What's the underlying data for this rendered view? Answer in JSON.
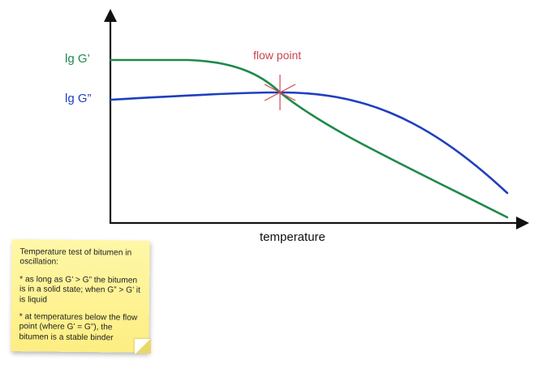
{
  "diagram": {
    "y_label_storage": "lg G’",
    "y_label_loss": "lg G”",
    "flow_point_label": "flow point",
    "x_axis_label": "temperature",
    "colors": {
      "storage_modulus": "#1e8a4a",
      "loss_modulus": "#1f3fbf",
      "flow_point": "#c9444e",
      "axes": "#111111",
      "note_background": "#fdee82"
    },
    "icons": {
      "flow_point_marker": "star-cross-icon",
      "axis_arrows": "arrow-head-icon"
    }
  },
  "note": {
    "title": "Temperature test of bitumen in oscillation:",
    "point_1": "* as long as G’ > G” the bitumen is in a solid state; when G” > G’ it is liquid",
    "point_2": "* at temperatures below the flow point (where G’ = G”), the bitumen is a stable binder"
  }
}
